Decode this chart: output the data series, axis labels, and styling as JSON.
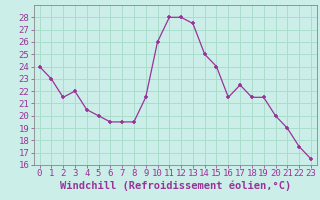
{
  "x": [
    0,
    1,
    2,
    3,
    4,
    5,
    6,
    7,
    8,
    9,
    10,
    11,
    12,
    13,
    14,
    15,
    16,
    17,
    18,
    19,
    20,
    21,
    22,
    23
  ],
  "y": [
    24,
    23,
    21.5,
    22,
    20.5,
    20,
    19.5,
    19.5,
    19.5,
    21.5,
    26,
    28,
    28,
    27.5,
    25,
    24,
    21.5,
    22.5,
    21.5,
    21.5,
    20,
    19,
    17.5,
    16.5
  ],
  "line_color": "#993399",
  "marker_color": "#993399",
  "bg_color": "#cceee8",
  "grid_color": "#aaddcc",
  "xlabel": "Windchill (Refroidissement éolien,°C)",
  "xlabel_color": "#993399",
  "ylim": [
    16,
    29
  ],
  "xlim": [
    -0.5,
    23.5
  ],
  "yticks": [
    16,
    17,
    18,
    19,
    20,
    21,
    22,
    23,
    24,
    25,
    26,
    27,
    28
  ],
  "xticks": [
    0,
    1,
    2,
    3,
    4,
    5,
    6,
    7,
    8,
    9,
    10,
    11,
    12,
    13,
    14,
    15,
    16,
    17,
    18,
    19,
    20,
    21,
    22,
    23
  ],
  "tick_fontsize": 6.5,
  "xlabel_fontsize": 7.5
}
